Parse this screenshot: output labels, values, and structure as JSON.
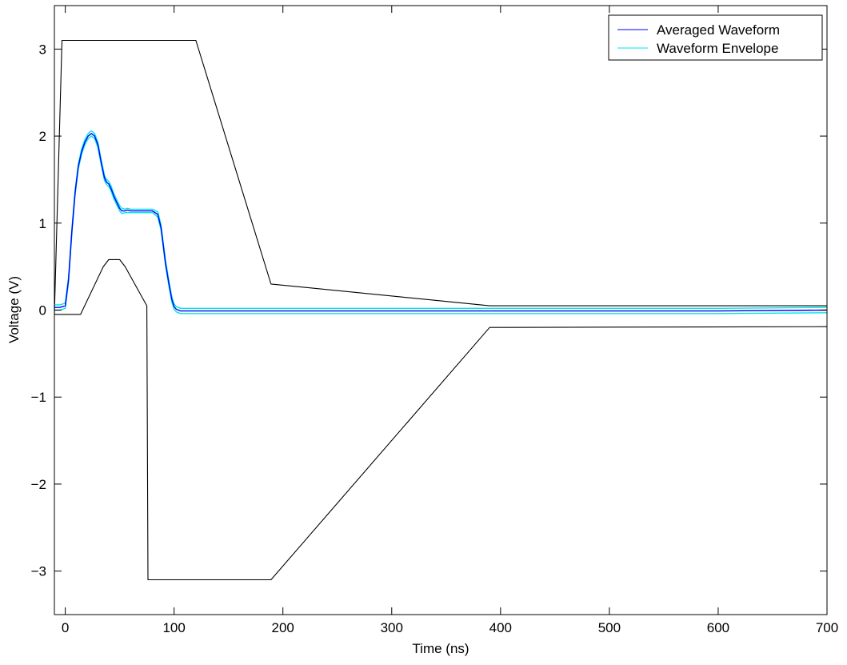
{
  "chart_data": {
    "type": "line",
    "xlabel": "Time (ns)",
    "ylabel": "Voltage (V)",
    "xlim": [
      -10,
      700
    ],
    "ylim": [
      -3.5,
      3.5
    ],
    "xticks": [
      0,
      100,
      200,
      300,
      400,
      500,
      600,
      700
    ],
    "yticks": [
      -3,
      -2,
      -1,
      0,
      1,
      2,
      3
    ],
    "xtick_labels": [
      "0",
      "100",
      "200",
      "300",
      "400",
      "500",
      "600",
      "700"
    ],
    "ytick_labels": [
      "−3",
      "−2",
      "−1",
      "0",
      "1",
      "2",
      "3"
    ],
    "grid": false,
    "legend_position": "top-right",
    "series": [
      {
        "name": "Averaged Waveform",
        "color": "#0000ff",
        "x": [
          -10,
          -5,
          0,
          3,
          6,
          9,
          12,
          15,
          18,
          21,
          24,
          27,
          30,
          33,
          36,
          38,
          40,
          42,
          45,
          48,
          50,
          52,
          55,
          57,
          60,
          70,
          80,
          85,
          88,
          90,
          92,
          95,
          98,
          100,
          102,
          104,
          106,
          110,
          120,
          150,
          200,
          300,
          400,
          500,
          600,
          700
        ],
        "y": [
          0.03,
          0.03,
          0.05,
          0.35,
          0.9,
          1.35,
          1.65,
          1.82,
          1.93,
          2.0,
          2.03,
          2.0,
          1.9,
          1.7,
          1.52,
          1.47,
          1.45,
          1.4,
          1.3,
          1.22,
          1.17,
          1.14,
          1.14,
          1.15,
          1.14,
          1.14,
          1.14,
          1.1,
          0.95,
          0.75,
          0.55,
          0.32,
          0.12,
          0.04,
          0.01,
          0.0,
          -0.01,
          -0.01,
          -0.01,
          -0.01,
          -0.01,
          -0.01,
          -0.01,
          -0.01,
          -0.01,
          0.0
        ]
      },
      {
        "name": "Waveform Envelope",
        "color": "#00e5e5",
        "x": [
          -10,
          -5,
          0,
          3,
          6,
          9,
          12,
          15,
          18,
          21,
          24,
          27,
          30,
          33,
          36,
          38,
          40,
          42,
          45,
          48,
          50,
          52,
          55,
          57,
          60,
          70,
          80,
          85,
          88,
          90,
          92,
          95,
          98,
          100,
          102,
          104,
          106,
          110,
          120,
          150,
          200,
          300,
          400,
          500,
          600,
          700
        ],
        "y": [
          0.0,
          0.0,
          0.02,
          0.32,
          0.87,
          1.32,
          1.62,
          1.79,
          1.9,
          1.97,
          2.0,
          1.97,
          1.87,
          1.67,
          1.49,
          1.44,
          1.42,
          1.37,
          1.27,
          1.19,
          1.14,
          1.11,
          1.12,
          1.12,
          1.12,
          1.12,
          1.12,
          1.07,
          0.92,
          0.72,
          0.52,
          0.29,
          0.09,
          0.01,
          -0.02,
          -0.03,
          -0.04,
          -0.04,
          -0.04,
          -0.04,
          -0.04,
          -0.04,
          -0.04,
          -0.04,
          -0.04,
          -0.03
        ]
      },
      {
        "name": "",
        "color": "#00e5e5",
        "x": [
          -10,
          -5,
          0,
          3,
          6,
          9,
          12,
          15,
          18,
          21,
          24,
          27,
          30,
          33,
          36,
          38,
          40,
          42,
          45,
          48,
          50,
          52,
          55,
          57,
          60,
          70,
          80,
          85,
          88,
          90,
          92,
          95,
          98,
          100,
          102,
          104,
          106,
          110,
          120,
          150,
          200,
          300,
          400,
          500,
          600,
          700
        ],
        "y": [
          0.06,
          0.06,
          0.08,
          0.38,
          0.93,
          1.38,
          1.68,
          1.85,
          1.96,
          2.03,
          2.06,
          2.03,
          1.93,
          1.73,
          1.55,
          1.5,
          1.48,
          1.43,
          1.33,
          1.25,
          1.2,
          1.17,
          1.16,
          1.17,
          1.16,
          1.16,
          1.16,
          1.13,
          0.98,
          0.78,
          0.58,
          0.35,
          0.15,
          0.07,
          0.04,
          0.03,
          0.02,
          0.02,
          0.02,
          0.02,
          0.02,
          0.02,
          0.02,
          0.02,
          0.02,
          0.03
        ]
      },
      {
        "name": "",
        "color": "#000000",
        "x": [
          -10,
          -3,
          120,
          189,
          390,
          700
        ],
        "y": [
          -0.05,
          3.1,
          3.1,
          0.3,
          0.05,
          0.05
        ]
      },
      {
        "name": "",
        "color": "#000000",
        "x": [
          -10,
          14,
          35,
          40,
          50,
          55,
          75,
          76,
          189,
          390,
          700
        ],
        "y": [
          -0.05,
          -0.05,
          0.5,
          0.58,
          0.58,
          0.5,
          0.05,
          -3.1,
          -3.1,
          -0.2,
          -0.19
        ]
      }
    ]
  }
}
